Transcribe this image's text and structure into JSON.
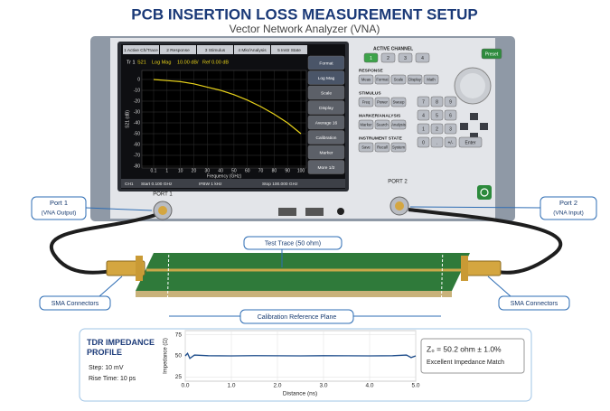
{
  "header": {
    "title": "PCB INSERTION LOSS MEASUREMENT SETUP",
    "subtitle": "Vector Network Analyzer (VNA)"
  },
  "vna": {
    "tabs": [
      "1 Active Ch/Trace",
      "2 Response",
      "3 Stimulus",
      "4 Mkr/Analysis",
      "5 Instr State"
    ],
    "trace_header": [
      "Tr 1",
      "S21",
      "Log Mag",
      "10.00 dB/",
      "Ref 0.00 dB"
    ],
    "plot": {
      "ylabel": "S21 (dB)",
      "xlabel": "Frequency (GHz)",
      "ylim": [
        -80,
        0
      ],
      "yticks": [
        0,
        -10,
        -20,
        -30,
        -40,
        -50,
        -60,
        -70,
        -80
      ],
      "x_labels": [
        0.1,
        1,
        10,
        20,
        30,
        40,
        50,
        60,
        70,
        80,
        90,
        100
      ],
      "trace_color": "#e8d21a",
      "trace_values": [
        0,
        -1,
        -2,
        -4,
        -7,
        -10,
        -14,
        -19,
        -25,
        -32,
        -40,
        -50
      ]
    },
    "status": [
      "CH1",
      "Start 0.100 GHz",
      "IFBW 1 kHz",
      "Stop 100.000 GHz"
    ],
    "softkeys": [
      "Format",
      "Log Mag",
      "Scale",
      "Display",
      "Average 16",
      "Calibration",
      "Marker",
      "More 1/2"
    ],
    "panel": {
      "active_channel": {
        "label": "ACTIVE CHANNEL",
        "buttons": [
          "1",
          "2",
          "3",
          "4"
        ]
      },
      "preset": "Preset",
      "groups": [
        {
          "label": "RESPONSE",
          "buttons": [
            "Meas",
            "Format",
            "Scale",
            "Display",
            "Math"
          ]
        },
        {
          "label": "STIMULUS",
          "buttons": [
            "Freq",
            "Power",
            "Sweep"
          ]
        },
        {
          "label": "MARKER/ANALYSIS",
          "buttons": [
            "Marker",
            "Search",
            "Analysis"
          ]
        },
        {
          "label": "INSTRUMENT STATE",
          "buttons": [
            "Save",
            "Recall",
            "System"
          ]
        }
      ],
      "keypad": [
        "7",
        "8",
        "9",
        "4",
        "5",
        "6",
        "1",
        "2",
        "3",
        "0",
        ".",
        "+/-",
        "Enter"
      ]
    },
    "ports": [
      "PORT 1",
      "PORT 2"
    ]
  },
  "callouts": {
    "port1": [
      "Port 1",
      "(VNA Output)"
    ],
    "port2": [
      "Port 2",
      "(VNA Input)"
    ],
    "test_trace": "Test Trace (50 ohm)",
    "sma_left": "SMA Connectors",
    "sma_right": "SMA Connectors",
    "cal_plane": "Calibration Reference Plane"
  },
  "tdr": {
    "title": "TDR IMPEDANCE PROFILE",
    "step": "Step: 10 mV",
    "rise_time": "Rise Time: 10 ps",
    "ylabel": "Impedance (Ω)",
    "xlabel": "Distance (ns)",
    "ylim": [
      20,
      80
    ],
    "yticks": [
      25,
      50,
      75
    ],
    "xlim": [
      0,
      5
    ],
    "xticks": [
      {
        "value": 0,
        "label": "0.0"
      },
      {
        "value": 1,
        "label": "1.0"
      },
      {
        "value": 2,
        "label": "2.0"
      },
      {
        "value": 3,
        "label": "3.0"
      },
      {
        "value": 4,
        "label": "4.0"
      },
      {
        "value": 5,
        "label": "5.0"
      }
    ],
    "x": [
      0,
      0.05,
      0.1,
      0.2,
      0.5,
      1,
      1.5,
      2,
      2.5,
      3,
      3.5,
      4,
      4.5,
      4.8,
      4.9,
      5
    ],
    "values": [
      50,
      53,
      47,
      51,
      50.2,
      50,
      50.3,
      50.1,
      50,
      50.2,
      50.1,
      50,
      50.2,
      51,
      48,
      50
    ],
    "trace_color": "#1f4e8c",
    "result": "Z₀ = 50.2 ohm ± 1.0%",
    "result_note": "Excellent Impedance Match"
  }
}
